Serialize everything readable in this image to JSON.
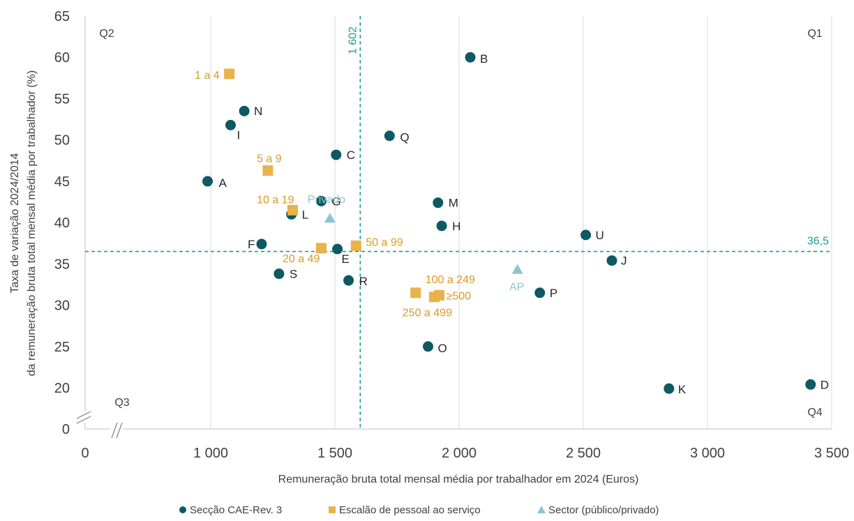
{
  "chart_data": {
    "type": "scatter",
    "xlabel": "Remuneração bruta total mensal média por trabalhador em 2024 (Euros)",
    "ylabel_line1": "Taxa de variação 2024/2014",
    "ylabel_line2": "da remuneração bruta total mensal média por trabalhador (%)",
    "x_ticks": [
      {
        "value": 0,
        "label": "0"
      },
      {
        "value": 1000,
        "label": "1 000"
      },
      {
        "value": 1500,
        "label": "1 500"
      },
      {
        "value": 2000,
        "label": "2 000"
      },
      {
        "value": 2500,
        "label": "2 500"
      },
      {
        "value": 3000,
        "label": "3 000"
      },
      {
        "value": 3500,
        "label": "3 500"
      }
    ],
    "y_ticks": [
      {
        "value": 0,
        "label": "0"
      },
      {
        "value": 20,
        "label": "20"
      },
      {
        "value": 25,
        "label": "25"
      },
      {
        "value": 30,
        "label": "30"
      },
      {
        "value": 35,
        "label": "35"
      },
      {
        "value": 40,
        "label": "40"
      },
      {
        "value": 45,
        "label": "45"
      },
      {
        "value": 50,
        "label": "50"
      },
      {
        "value": 55,
        "label": "55"
      },
      {
        "value": 60,
        "label": "60"
      },
      {
        "value": 65,
        "label": "65"
      }
    ],
    "axis_break": "between 0 and 20 on y axis and between 0 and 1 000 on x axis",
    "grid": "vertical gridlines",
    "reference_lines": {
      "vertical": {
        "value": 1602,
        "label": "1 602"
      },
      "horizontal": {
        "value": 36.5,
        "label": "36,5"
      }
    },
    "quadrants": [
      "Q1",
      "Q2",
      "Q3",
      "Q4"
    ],
    "legend_position": "bottom",
    "series": [
      {
        "name": "Secção CAE-Rev. 3",
        "color": "#0d5a63",
        "marker": "circle",
        "points": [
          {
            "label": "A",
            "x": 975,
            "y": 45.0
          },
          {
            "label": "B",
            "x": 2045,
            "y": 60.0
          },
          {
            "label": "C",
            "x": 1505,
            "y": 48.2
          },
          {
            "label": "D",
            "x": 3415,
            "y": 20.4
          },
          {
            "label": "E",
            "x": 1510,
            "y": 36.8
          },
          {
            "label": "F",
            "x": 1205,
            "y": 37.4
          },
          {
            "label": "G",
            "x": 1445,
            "y": 42.6
          },
          {
            "label": "H",
            "x": 1930,
            "y": 39.6
          },
          {
            "label": "I",
            "x": 1080,
            "y": 51.8
          },
          {
            "label": "J",
            "x": 2615,
            "y": 35.4
          },
          {
            "label": "K",
            "x": 2845,
            "y": 19.6
          },
          {
            "label": "L",
            "x": 1325,
            "y": 41.0
          },
          {
            "label": "M",
            "x": 1915,
            "y": 42.4
          },
          {
            "label": "N",
            "x": 1135,
            "y": 53.5
          },
          {
            "label": "O",
            "x": 1875,
            "y": 25.0
          },
          {
            "label": "P",
            "x": 2325,
            "y": 31.5
          },
          {
            "label": "Q",
            "x": 1720,
            "y": 50.5
          },
          {
            "label": "R",
            "x": 1555,
            "y": 33.0
          },
          {
            "label": "S",
            "x": 1275,
            "y": 33.8
          },
          {
            "label": "U",
            "x": 2510,
            "y": 38.5
          }
        ]
      },
      {
        "name": "Escalão de pessoal ao serviço",
        "color": "#e8b34a",
        "marker": "square",
        "points": [
          {
            "label": "1 a 4",
            "x": 1075,
            "y": 58.0
          },
          {
            "label": "5 a 9",
            "x": 1230,
            "y": 46.3
          },
          {
            "label": "10 a 19",
            "x": 1330,
            "y": 41.5
          },
          {
            "label": "20 a 49",
            "x": 1445,
            "y": 36.9
          },
          {
            "label": "50 a 99",
            "x": 1585,
            "y": 37.2
          },
          {
            "label": "100 a 249",
            "x": 1825,
            "y": 31.5
          },
          {
            "label": "250 a 499",
            "x": 1900,
            "y": 31.0
          },
          {
            "label": "≥500",
            "x": 1920,
            "y": 31.2
          }
        ]
      },
      {
        "name": "Sector (público/privado)",
        "color": "#8fc3d1",
        "marker": "triangle",
        "points": [
          {
            "label": "Privado",
            "x": 1480,
            "y": 40.5
          },
          {
            "label": "AP",
            "x": 2235,
            "y": 34.3
          }
        ]
      }
    ]
  }
}
